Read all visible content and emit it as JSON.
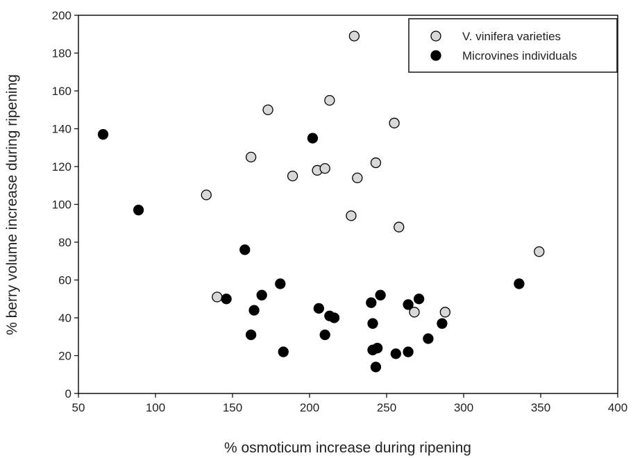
{
  "chart_data": {
    "type": "scatter",
    "xlabel": "% osmoticum increase during ripening",
    "ylabel": "% berry volume increase during ripening",
    "xlim": [
      50,
      400
    ],
    "ylim": [
      0,
      200
    ],
    "xticks": [
      50,
      100,
      150,
      200,
      250,
      300,
      350,
      400
    ],
    "yticks": [
      0,
      20,
      40,
      60,
      80,
      100,
      120,
      140,
      160,
      180,
      200
    ],
    "grid": false,
    "legend_position": "top-right",
    "series": [
      {
        "name": "V. vinifera varieties",
        "marker": "open-circle",
        "fill": "#d8d8d8",
        "points": [
          {
            "x": 229,
            "y": 189
          },
          {
            "x": 173,
            "y": 150
          },
          {
            "x": 213,
            "y": 155
          },
          {
            "x": 255,
            "y": 143
          },
          {
            "x": 162,
            "y": 125
          },
          {
            "x": 243,
            "y": 122
          },
          {
            "x": 205,
            "y": 118
          },
          {
            "x": 210,
            "y": 119
          },
          {
            "x": 189,
            "y": 115
          },
          {
            "x": 231,
            "y": 114
          },
          {
            "x": 133,
            "y": 105
          },
          {
            "x": 227,
            "y": 94
          },
          {
            "x": 258,
            "y": 88
          },
          {
            "x": 349,
            "y": 75
          },
          {
            "x": 140,
            "y": 51
          },
          {
            "x": 268,
            "y": 43
          },
          {
            "x": 288,
            "y": 43
          }
        ]
      },
      {
        "name": "Microvines individuals",
        "marker": "filled-circle",
        "fill": "#000000",
        "points": [
          {
            "x": 66,
            "y": 137
          },
          {
            "x": 89,
            "y": 97
          },
          {
            "x": 202,
            "y": 135
          },
          {
            "x": 158,
            "y": 76
          },
          {
            "x": 336,
            "y": 58
          },
          {
            "x": 181,
            "y": 58
          },
          {
            "x": 169,
            "y": 52
          },
          {
            "x": 146,
            "y": 50
          },
          {
            "x": 164,
            "y": 44
          },
          {
            "x": 206,
            "y": 45
          },
          {
            "x": 213,
            "y": 41
          },
          {
            "x": 216,
            "y": 40
          },
          {
            "x": 240,
            "y": 48
          },
          {
            "x": 246,
            "y": 52
          },
          {
            "x": 264,
            "y": 47
          },
          {
            "x": 271,
            "y": 50
          },
          {
            "x": 241,
            "y": 37
          },
          {
            "x": 286,
            "y": 37
          },
          {
            "x": 277,
            "y": 29
          },
          {
            "x": 162,
            "y": 31
          },
          {
            "x": 210,
            "y": 31
          },
          {
            "x": 183,
            "y": 22
          },
          {
            "x": 241,
            "y": 23
          },
          {
            "x": 244,
            "y": 24
          },
          {
            "x": 256,
            "y": 21
          },
          {
            "x": 264,
            "y": 22
          },
          {
            "x": 243,
            "y": 14
          }
        ]
      }
    ]
  }
}
